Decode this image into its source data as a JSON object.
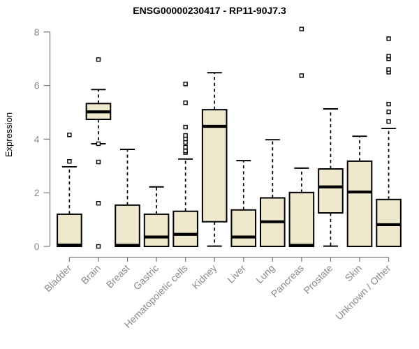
{
  "chart_data": {
    "type": "boxplot",
    "title": "ENSG00000230417 - RP11-90J7.3",
    "ylabel": "Expression",
    "ylim": [
      0,
      8
    ],
    "yticks": [
      0,
      2,
      4,
      6,
      8
    ],
    "grid": false,
    "legend": "none",
    "box_fill": "#EEE8CD",
    "box_stroke": "#000000",
    "median_color": "#000000",
    "whisker_color": "#000000",
    "outlier_fill": "#ffffff",
    "outlier_stroke": "#000000",
    "axis_color": "#828282",
    "label_color": "#8a8a8a",
    "title_color": "#000000",
    "background": "#ffffff",
    "categories": [
      "Bladder",
      "Brain",
      "Breast",
      "Gastric",
      "Hematopoietic cells",
      "Kidney",
      "Liver",
      "Lung",
      "Pancreas",
      "Prostate",
      "Skin",
      "Unknown / Other"
    ],
    "series": [
      {
        "category": "Bladder",
        "whisker_low": 0,
        "q1": 0,
        "median": 0.05,
        "q3": 1.2,
        "whisker_high": 2.97,
        "outliers": [
          3.17,
          4.16
        ]
      },
      {
        "category": "Brain",
        "whisker_low": 3.83,
        "q1": 4.74,
        "median": 5.02,
        "q3": 5.33,
        "whisker_high": 5.85,
        "outliers": [
          0.0,
          1.61,
          3.15,
          3.83,
          6.97
        ]
      },
      {
        "category": "Breast",
        "whisker_low": 0,
        "q1": 0,
        "median": 0.04,
        "q3": 1.54,
        "whisker_high": 3.62,
        "outliers": []
      },
      {
        "category": "Gastric",
        "whisker_low": 0,
        "q1": 0,
        "median": 0.35,
        "q3": 1.2,
        "whisker_high": 2.22,
        "outliers": []
      },
      {
        "category": "Hematopoietic cells",
        "whisker_low": 0,
        "q1": 0,
        "median": 0.45,
        "q3": 1.31,
        "whisker_high": 3.26,
        "outliers": [
          3.5,
          3.56,
          3.7,
          3.88,
          4.01,
          4.14,
          4.45,
          5.36,
          6.06
        ]
      },
      {
        "category": "Kidney",
        "whisker_low": 0.01,
        "q1": 0.92,
        "median": 4.48,
        "q3": 5.1,
        "whisker_high": 6.48,
        "outliers": []
      },
      {
        "category": "Liver",
        "whisker_low": 0,
        "q1": 0,
        "median": 0.35,
        "q3": 1.36,
        "whisker_high": 3.2,
        "outliers": []
      },
      {
        "category": "Lung",
        "whisker_low": 0,
        "q1": 0,
        "median": 0.92,
        "q3": 1.81,
        "whisker_high": 3.98,
        "outliers": []
      },
      {
        "category": "Pancreas",
        "whisker_low": 0,
        "q1": 0,
        "median": 0.04,
        "q3": 2.01,
        "whisker_high": 2.92,
        "outliers": [
          6.37,
          8.11
        ]
      },
      {
        "category": "Prostate",
        "whisker_low": 0.01,
        "q1": 1.25,
        "median": 2.22,
        "q3": 2.89,
        "whisker_high": 5.13,
        "outliers": []
      },
      {
        "category": "Skin",
        "whisker_low": 0,
        "q1": 0,
        "median": 2.03,
        "q3": 3.18,
        "whisker_high": 4.11,
        "outliers": []
      },
      {
        "category": "Unknown / Other",
        "whisker_low": 0,
        "q1": 0,
        "median": 0.81,
        "q3": 1.75,
        "whisker_high": 4.4,
        "outliers": [
          4.66,
          5.02,
          5.31,
          6.5,
          6.6,
          7.0,
          7.1,
          7.75
        ]
      }
    ]
  }
}
